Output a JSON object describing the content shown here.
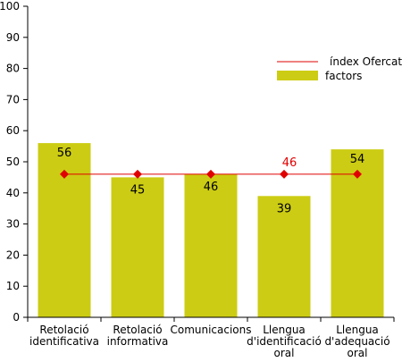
{
  "chart_data": {
    "type": "bar",
    "categories": [
      [
        "Retolació",
        "identificativa"
      ],
      [
        "Retolació",
        "informativa"
      ],
      [
        "Comunicacions"
      ],
      [
        "Llengua",
        "d'identificació",
        "oral"
      ],
      [
        "Llengua",
        "d'adequació",
        "oral"
      ]
    ],
    "series": [
      {
        "name": "factors",
        "type": "bar",
        "color": "#cccc14",
        "values": [
          56,
          45,
          46,
          39,
          54
        ]
      },
      {
        "name": "índex Ofercat",
        "type": "line",
        "color": "#e00000",
        "values": [
          46,
          46,
          46,
          46,
          46
        ]
      }
    ],
    "index_value_label": "46",
    "ylim": [
      0,
      100
    ],
    "yticks": [
      "0",
      "10",
      "20",
      "30",
      "40",
      "50",
      "60",
      "70",
      "80",
      "90",
      "100"
    ],
    "legend_position": "top-right",
    "grid": false
  }
}
